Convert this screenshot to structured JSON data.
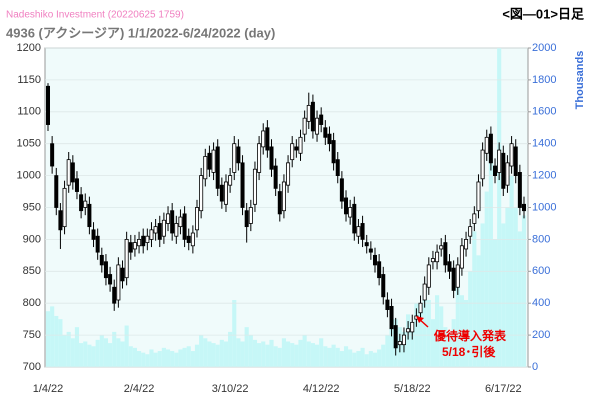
{
  "chart_data": {
    "type": "candlestick",
    "source": "Nadeshiko Investment (20220625 1759)",
    "corner_title": "<図―01>日足",
    "title": "4936 (アクシージア) 1/1/2022-6/24/2022 (day)",
    "y2_label": "Thousands",
    "annotation": [
      "優待導入発表",
      "5/18･引後"
    ],
    "categories": [
      "1/4/22",
      null,
      null,
      null,
      null,
      null,
      null,
      null,
      null,
      null,
      null,
      null,
      null,
      null,
      null,
      null,
      null,
      null,
      null,
      null,
      null,
      null,
      "2/4/22",
      null,
      null,
      null,
      null,
      null,
      null,
      null,
      null,
      null,
      null,
      null,
      null,
      null,
      null,
      null,
      null,
      null,
      null,
      null,
      null,
      null,
      "3/10/22",
      null,
      null,
      null,
      null,
      null,
      null,
      null,
      null,
      null,
      null,
      null,
      null,
      null,
      null,
      null,
      null,
      null,
      null,
      null,
      null,
      null,
      "4/12/22",
      null,
      null,
      null,
      null,
      null,
      null,
      null,
      null,
      null,
      null,
      null,
      null,
      null,
      null,
      null,
      null,
      null,
      null,
      null,
      null,
      null,
      "5/18/22",
      null,
      null,
      null,
      null,
      null,
      null,
      null,
      null,
      null,
      null,
      null,
      null,
      null,
      null,
      null,
      null,
      null,
      null,
      null,
      null,
      null,
      "6/17/22",
      null,
      null,
      null,
      null,
      null
    ],
    "open": [
      1140,
      1050,
      1000,
      945,
      920,
      985,
      1020,
      995,
      970,
      950,
      955,
      915,
      905,
      875,
      865,
      845,
      825,
      805,
      855,
      840,
      895,
      885,
      890,
      905,
      895,
      900,
      910,
      925,
      905,
      925,
      945,
      905,
      920,
      940,
      905,
      890,
      915,
      945,
      995,
      1035,
      1005,
      1045,
      985,
      955,
      985,
      1005,
      1045,
      1020,
      945,
      925,
      955,
      1005,
      1045,
      1075,
      1045,
      1015,
      975,
      945,
      985,
      1025,
      1045,
      1035,
      1065,
      1085,
      1115,
      1065,
      1095,
      1075,
      1065,
      1055,
      1025,
      995,
      965,
      935,
      955,
      905,
      925,
      895,
      885,
      875,
      865,
      845,
      805,
      795,
      765,
      735,
      735,
      755,
      755,
      775,
      785,
      805,
      825,
      865,
      865,
      885,
      895,
      865,
      855,
      825,
      855,
      885,
      905,
      925,
      945,
      995,
      1035,
      1065,
      1015,
      1005,
      1035,
      985,
      1015,
      1045,
      1005,
      955
    ],
    "high": [
      1145,
      1062,
      1012,
      957,
      992,
      1037,
      1032,
      1007,
      982,
      972,
      967,
      927,
      917,
      887,
      877,
      857,
      837,
      872,
      867,
      912,
      907,
      907,
      912,
      917,
      917,
      927,
      932,
      937,
      942,
      952,
      957,
      937,
      947,
      952,
      917,
      922,
      962,
      1012,
      1042,
      1047,
      1052,
      1057,
      997,
      1002,
      1012,
      1062,
      1057,
      1032,
      957,
      962,
      1022,
      1062,
      1082,
      1087,
      1057,
      1027,
      987,
      1002,
      1032,
      1062,
      1057,
      1072,
      1102,
      1130,
      1127,
      1102,
      1107,
      1087,
      1077,
      1067,
      1037,
      1007,
      977,
      962,
      967,
      932,
      937,
      907,
      897,
      887,
      877,
      857,
      817,
      807,
      777,
      752,
      762,
      772,
      782,
      792,
      812,
      842,
      872,
      882,
      892,
      902,
      907,
      877,
      867,
      872,
      902,
      912,
      932,
      952,
      1002,
      1052,
      1072,
      1077,
      1027,
      1052,
      1047,
      1032,
      1062,
      1057,
      1017,
      967
    ],
    "low": [
      1070,
      1003,
      938,
      885,
      908,
      973,
      978,
      963,
      933,
      938,
      908,
      888,
      868,
      848,
      828,
      818,
      788,
      793,
      823,
      828,
      868,
      873,
      878,
      878,
      883,
      888,
      898,
      888,
      893,
      913,
      898,
      893,
      908,
      888,
      883,
      878,
      903,
      933,
      983,
      998,
      993,
      968,
      948,
      943,
      973,
      993,
      1008,
      938,
      895,
      913,
      943,
      993,
      1033,
      1028,
      998,
      968,
      928,
      933,
      973,
      1013,
      1028,
      1023,
      1053,
      1073,
      1058,
      1053,
      1068,
      1048,
      1038,
      1008,
      988,
      948,
      928,
      923,
      898,
      893,
      888,
      878,
      868,
      848,
      828,
      798,
      778,
      748,
      718,
      723,
      723,
      743,
      743,
      763,
      773,
      793,
      813,
      853,
      853,
      873,
      848,
      838,
      808,
      813,
      843,
      873,
      893,
      913,
      933,
      983,
      1023,
      1008,
      988,
      993,
      968,
      973,
      1003,
      988,
      938,
      933
    ],
    "close": [
      1080,
      1015,
      950,
      915,
      980,
      1025,
      990,
      975,
      945,
      960,
      920,
      900,
      880,
      860,
      840,
      830,
      800,
      860,
      835,
      900,
      880,
      895,
      900,
      890,
      905,
      915,
      920,
      900,
      930,
      940,
      910,
      925,
      935,
      900,
      895,
      910,
      950,
      1000,
      1030,
      1010,
      1040,
      980,
      960,
      990,
      1000,
      1050,
      1020,
      950,
      920,
      950,
      1010,
      1050,
      1070,
      1040,
      1010,
      980,
      940,
      990,
      1020,
      1050,
      1040,
      1060,
      1090,
      1110,
      1070,
      1090,
      1080,
      1060,
      1050,
      1020,
      1000,
      960,
      940,
      950,
      910,
      920,
      900,
      890,
      880,
      860,
      840,
      810,
      790,
      760,
      730,
      740,
      750,
      760,
      770,
      780,
      800,
      830,
      860,
      870,
      880,
      890,
      860,
      850,
      820,
      860,
      890,
      900,
      920,
      940,
      990,
      1040,
      1060,
      1020,
      1000,
      1040,
      980,
      1020,
      1050,
      1000,
      950,
      945
    ],
    "volume": [
      350,
      380,
      320,
      300,
      200,
      220,
      180,
      250,
      150,
      160,
      140,
      130,
      170,
      200,
      180,
      150,
      220,
      180,
      160,
      260,
      130,
      120,
      100,
      90,
      80,
      110,
      90,
      100,
      120,
      110,
      100,
      90,
      110,
      120,
      130,
      100,
      140,
      200,
      180,
      160,
      150,
      140,
      170,
      160,
      220,
      420,
      180,
      160,
      250,
      200,
      170,
      150,
      160,
      140,
      170,
      130,
      120,
      180,
      160,
      150,
      140,
      170,
      200,
      160,
      150,
      140,
      180,
      130,
      120,
      140,
      120,
      100,
      130,
      110,
      90,
      100,
      120,
      80,
      100,
      90,
      110,
      140,
      200,
      260,
      300,
      250,
      220,
      330,
      280,
      400,
      350,
      500,
      420,
      300,
      450,
      380,
      250,
      200,
      300,
      580,
      450,
      420,
      600,
      850,
      700,
      900,
      1100,
      1300,
      800,
      2000,
      900,
      1000,
      1200,
      1000,
      850,
      950
    ],
    "up_color": "#ffffff",
    "down_color": "#000000",
    "volume_color": "#c6f7f7",
    "ylim": [
      700,
      1200
    ],
    "yticks": [
      700,
      750,
      800,
      850,
      900,
      950,
      1000,
      1050,
      1100,
      1150,
      1200
    ],
    "y2lim": [
      0,
      2000
    ],
    "y2ticks": [
      0,
      200,
      400,
      600,
      800,
      1000,
      1200,
      1400,
      1600,
      1800,
      2000
    ],
    "grid": true
  }
}
